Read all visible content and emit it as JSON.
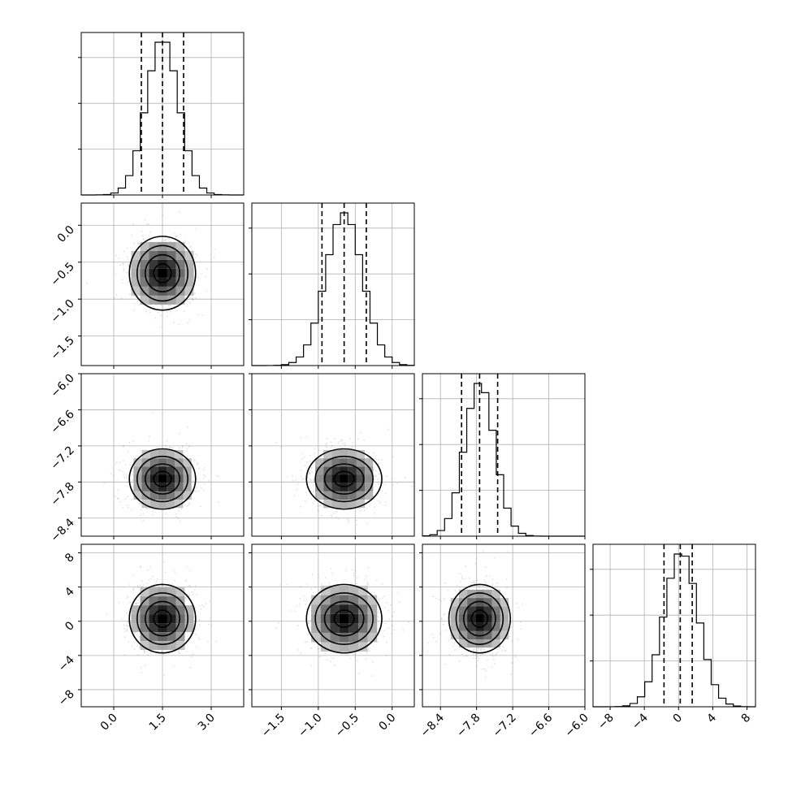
{
  "chart_data": {
    "type": "corner",
    "title": "",
    "parameters": [
      {
        "range": [
          -1.0,
          4.0
        ],
        "ticks": [
          0.0,
          1.5,
          3.0
        ],
        "tick_labels": [
          "0.0",
          "1.5",
          "3.0"
        ],
        "mean": 1.5,
        "sd": 0.5,
        "quantiles": [
          0.85,
          1.5,
          2.15
        ]
      },
      {
        "range": [
          -1.9,
          0.3
        ],
        "ticks": [
          -1.5,
          -1.0,
          -0.5,
          0.0
        ],
        "tick_labels": [
          "−1.5",
          "−1.0",
          "−0.5",
          "0.0"
        ],
        "mean": -0.65,
        "sd": 0.25,
        "quantiles": [
          -0.95,
          -0.65,
          -0.35
        ]
      },
      {
        "range": [
          -8.7,
          -6.0
        ],
        "ticks": [
          -8.4,
          -7.8,
          -7.2,
          -6.6,
          -6.0
        ],
        "tick_labels": [
          "−8.4",
          "−7.8",
          "−7.2",
          "−6.6",
          "−6.0"
        ],
        "mean": -7.75,
        "sd": 0.25,
        "quantiles": [
          -8.05,
          -7.75,
          -7.45
        ]
      },
      {
        "range": [
          -10.0,
          9.0
        ],
        "ticks": [
          -8,
          -4,
          0,
          4,
          8
        ],
        "tick_labels": [
          "−8",
          "−4",
          "0",
          "4",
          "8"
        ],
        "mean": 0.3,
        "sd": 2.0,
        "quantiles": [
          -1.7,
          0.2,
          1.6
        ]
      }
    ],
    "grid": true,
    "xlabel": "",
    "ylabel": ""
  }
}
